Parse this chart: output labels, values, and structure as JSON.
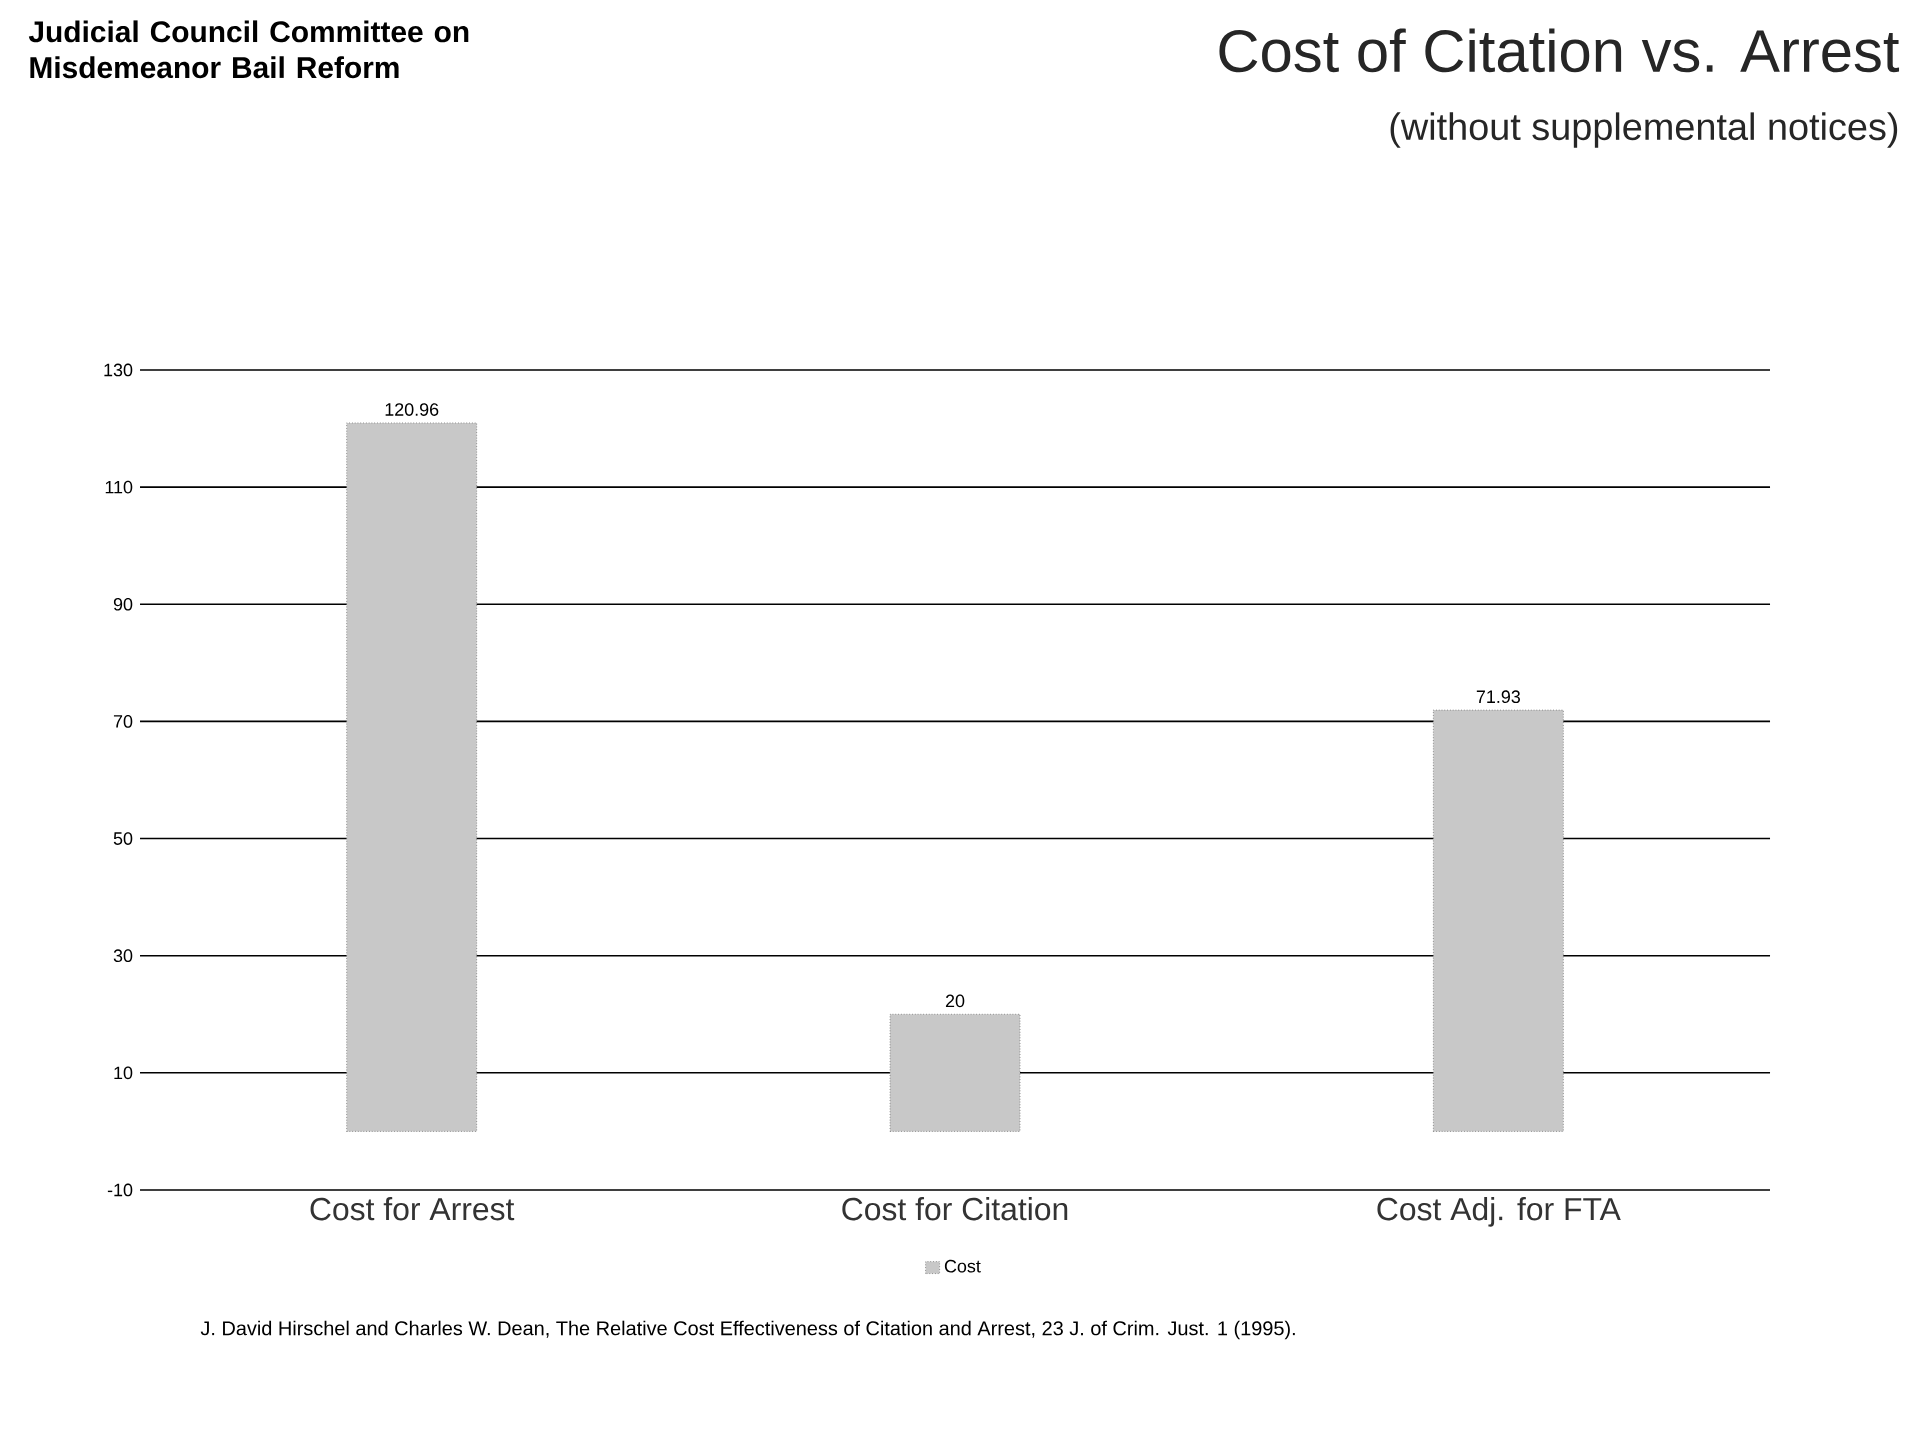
{
  "chart_data": {
    "type": "bar",
    "title": "Cost of Citation vs. Arrest",
    "subtitle": "(without supplemental notices)",
    "categories": [
      "Cost for Arrest",
      "Cost for Citation",
      "Cost Adj. for FTA"
    ],
    "series": [
      {
        "name": "Cost",
        "color": "#c8c8c8",
        "values": [
          120.96,
          20,
          71.93
        ]
      }
    ],
    "ylim": [
      -10,
      130
    ],
    "yticks": [
      -10,
      10,
      30,
      50,
      70,
      90,
      110,
      130
    ],
    "grid": "y",
    "legend": "bottom",
    "data_labels": true,
    "annotations": [
      "Judicial Council Committee on Misdemeanor Bail Reform",
      "J. David Hirschel and Charles W. Dean, The Relative Cost Effectiveness of Citation and Arrest, 23 J. of Crim. Just. 1 (1995)."
    ]
  }
}
